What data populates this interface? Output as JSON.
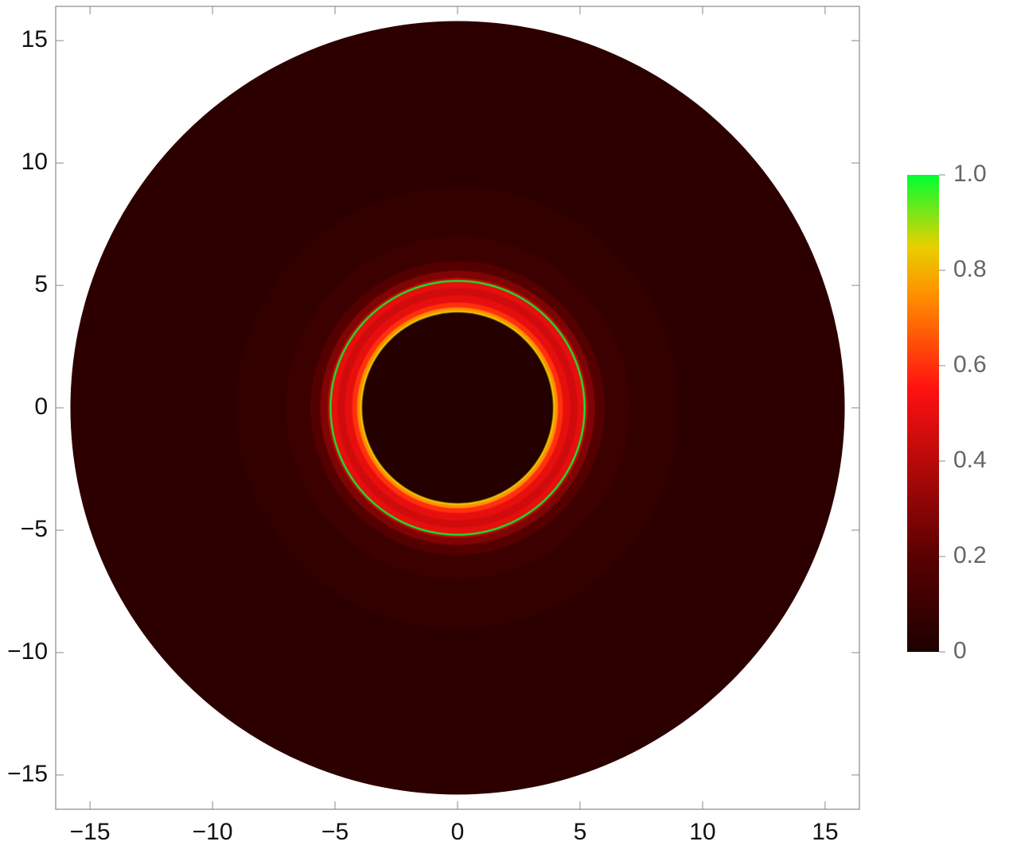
{
  "chart_data": {
    "type": "radial-density",
    "xlim": [
      -16.4,
      16.4
    ],
    "ylim": [
      -16.4,
      16.4
    ],
    "xticks": [
      {
        "value": -15,
        "label": "−15"
      },
      {
        "value": -10,
        "label": "−10"
      },
      {
        "value": -5,
        "label": "−5"
      },
      0,
      5,
      10,
      15
    ],
    "yticks": [
      {
        "value": -15,
        "label": "−15"
      },
      {
        "value": -10,
        "label": "−10"
      },
      {
        "value": -5,
        "label": "−5"
      },
      0,
      5,
      10,
      15
    ],
    "radius": [
      15.8,
      9,
      7,
      6,
      5.6,
      5.3,
      5.22,
      5.15,
      4.9,
      4.6,
      4.3,
      4.1,
      3.97,
      3.9
    ],
    "intensity": [
      0.05,
      0.07,
      0.1,
      0.18,
      0.28,
      0.42,
      1.0,
      0.5,
      0.45,
      0.5,
      0.6,
      0.75,
      0.85,
      0.02
    ],
    "colorbar": {
      "clim": [
        0,
        1
      ],
      "ticks": [
        0,
        0.2,
        0.4,
        0.6,
        0.8,
        {
          "value": 1,
          "label": "1.0"
        }
      ]
    },
    "colormap": [
      {
        "value": 0,
        "color": "#1e0000"
      },
      {
        "value": 0.2,
        "color": "#5a0000"
      },
      {
        "value": 0.55,
        "color": "#ff1010"
      },
      {
        "value": 0.75,
        "color": "#ff9000"
      },
      {
        "value": 0.85,
        "color": "#e8d000"
      },
      {
        "value": 1,
        "color": "#00ff30"
      }
    ]
  }
}
